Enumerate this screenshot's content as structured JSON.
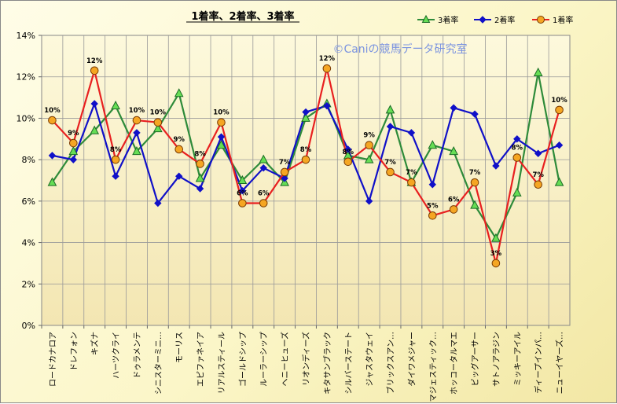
{
  "chart_data": {
    "type": "line",
    "title": "1着率、2着率、3着率",
    "watermark": "©Caniの競馬データ研究室",
    "xlabel": "",
    "ylabel": "",
    "ylim": [
      0,
      14
    ],
    "yticks": [
      "0%",
      "2%",
      "4%",
      "6%",
      "8%",
      "10%",
      "12%",
      "14%"
    ],
    "grid": true,
    "legend_position": "top-right",
    "categories": [
      "ロードカナロア",
      "ドレフォン",
      "キズナ",
      "ハーツクライ",
      "ドゥラメンテ",
      "シニスターミニ…",
      "モーリス",
      "エピファネイア",
      "リアルスティール",
      "ゴールドシップ",
      "ルーラーシップ",
      "ヘニーヒューズ",
      "リオンディーズ",
      "キタサンブラック",
      "シルバーステート",
      "ジャスタウェイ",
      "ブリックスアン…",
      "ダイワメジャー",
      "マジェスティック…",
      "ホッコータルマエ",
      "ビッグアーサー",
      "サトノアラジン",
      "ミッキーアイル",
      "ディープインパ…",
      "ニューイヤーズ…"
    ],
    "series": [
      {
        "name": "3着率",
        "color": "#2e8b3a",
        "marker": "triangle",
        "marker_fill": "#66dd55",
        "values": [
          6.9,
          8.4,
          9.4,
          10.6,
          8.4,
          9.5,
          11.2,
          7.1,
          8.7,
          7.0,
          8.0,
          6.9,
          10.0,
          10.7,
          8.2,
          8.0,
          10.4,
          6.9,
          8.7,
          8.4,
          5.8,
          4.2,
          6.4,
          12.2,
          6.9
        ]
      },
      {
        "name": "2着率",
        "color": "#1010c8",
        "marker": "diamond",
        "marker_fill": "#1010c8",
        "values": [
          8.2,
          8.0,
          10.7,
          7.2,
          9.3,
          5.9,
          7.2,
          6.6,
          9.1,
          6.5,
          7.6,
          7.1,
          10.3,
          10.6,
          8.5,
          6.0,
          9.6,
          9.3,
          6.8,
          10.5,
          10.2,
          7.7,
          9.0,
          8.3,
          8.7
        ]
      },
      {
        "name": "1着率",
        "color": "#e82020",
        "marker": "circle",
        "marker_fill": "#f5a623",
        "values": [
          9.9,
          8.8,
          12.3,
          8.0,
          9.9,
          9.8,
          8.5,
          7.8,
          9.8,
          5.9,
          5.9,
          7.4,
          8.0,
          12.4,
          7.9,
          8.7,
          7.4,
          6.9,
          5.3,
          5.6,
          6.9,
          3.0,
          8.1,
          6.8,
          10.4
        ]
      }
    ],
    "data_labels": [
      "10%",
      "9%",
      "12%",
      "8%",
      "10%",
      "10%",
      "9%",
      "8%",
      "10%",
      "6%",
      "6%",
      "7%",
      "8%",
      "12%",
      "8%",
      "9%",
      "7%",
      "7%",
      "5%",
      "6%",
      "7%",
      "3%",
      "8%",
      "7%",
      "10%"
    ]
  }
}
